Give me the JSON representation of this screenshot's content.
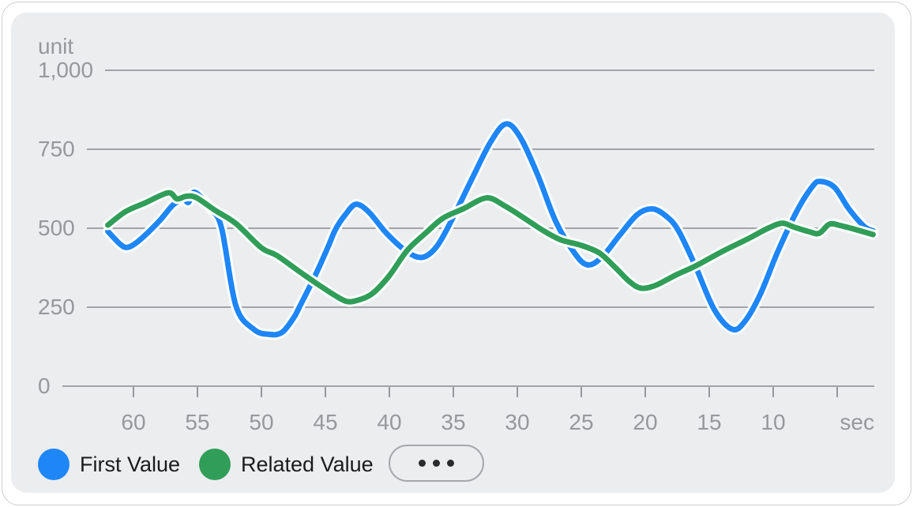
{
  "colors": {
    "card_bg": "#ecedef",
    "panel_border": "#cfcfd4",
    "grid": "#98989d",
    "axis_text": "#97979c",
    "legend_text": "#1b1b1d",
    "pill_border": "#a6a6ab",
    "dot_color": "#2b2b2d",
    "line_halo": "#ffffff",
    "first_value": "#1e86f6",
    "related_value": "#309e58"
  },
  "legend": {
    "more_button_icon": "ellipsis"
  },
  "chart_data": {
    "type": "line",
    "y_unit_label": "unit",
    "x_unit_label": "sec",
    "ylim": [
      0,
      1000
    ],
    "y_ticks": [
      {
        "label": "1,000",
        "value": 1000
      },
      {
        "label": "750",
        "value": 750
      },
      {
        "label": "500",
        "value": 500
      },
      {
        "label": "250",
        "value": 250
      },
      {
        "label": "0",
        "value": 0
      }
    ],
    "x_tick_labels": [
      {
        "label": "60",
        "sec": 60
      },
      {
        "label": "55",
        "sec": 55
      },
      {
        "label": "50",
        "sec": 50
      },
      {
        "label": "45",
        "sec": 45
      },
      {
        "label": "40",
        "sec": 40
      },
      {
        "label": "35",
        "sec": 35
      },
      {
        "label": "30",
        "sec": 30
      },
      {
        "label": "25",
        "sec": 25
      },
      {
        "label": "20",
        "sec": 20
      },
      {
        "label": "15",
        "sec": 15
      },
      {
        "label": "10",
        "sec": 10
      }
    ],
    "x_tick_marks_sec": [
      60,
      55,
      50,
      45,
      40,
      35,
      30,
      25,
      20,
      15,
      10,
      5
    ],
    "x_axis_note": "seconds, descending left-to-right (62 s ago to 2 s ago)",
    "grid": true,
    "legend_position": "bottom",
    "series": [
      {
        "name": "First Value",
        "color": "#1e86f6",
        "points": [
          [
            62,
            490
          ],
          [
            61,
            448
          ],
          [
            60.4,
            440
          ],
          [
            59.5,
            463
          ],
          [
            58,
            522
          ],
          [
            56.9,
            574
          ],
          [
            56.1,
            591
          ],
          [
            55.7,
            582
          ],
          [
            55.2,
            614
          ],
          [
            53.9,
            558
          ],
          [
            53.1,
            498
          ],
          [
            52.0,
            255
          ],
          [
            50.6,
            180
          ],
          [
            49.4,
            164
          ],
          [
            48.4,
            170
          ],
          [
            47.5,
            215
          ],
          [
            47.0,
            253
          ],
          [
            45.8,
            350
          ],
          [
            44.8,
            440
          ],
          [
            44.2,
            497
          ],
          [
            43.4,
            545
          ],
          [
            42.6,
            576
          ],
          [
            41.6,
            551
          ],
          [
            40.2,
            483
          ],
          [
            38.6,
            425
          ],
          [
            37.4,
            408
          ],
          [
            36.3,
            442
          ],
          [
            35.1,
            528
          ],
          [
            33.6,
            652
          ],
          [
            32.1,
            772
          ],
          [
            30.9,
            830
          ],
          [
            29.8,
            790
          ],
          [
            28.4,
            668
          ],
          [
            27.0,
            522
          ],
          [
            25.5,
            420
          ],
          [
            24.5,
            384
          ],
          [
            23.4,
            408
          ],
          [
            22.0,
            478
          ],
          [
            20.6,
            544
          ],
          [
            19.4,
            561
          ],
          [
            18.3,
            536
          ],
          [
            17.4,
            492
          ],
          [
            16.1,
            382
          ],
          [
            14.6,
            242
          ],
          [
            13.2,
            180
          ],
          [
            12.2,
            206
          ],
          [
            11.0,
            292
          ],
          [
            9.6,
            430
          ],
          [
            8.1,
            558
          ],
          [
            6.9,
            634
          ],
          [
            6.3,
            648
          ],
          [
            5.2,
            629
          ],
          [
            4.1,
            562
          ],
          [
            2.9,
            506
          ],
          [
            2.2,
            492
          ]
        ]
      },
      {
        "name": "Related Value",
        "color": "#309e58",
        "points": [
          [
            62,
            510
          ],
          [
            60.6,
            553
          ],
          [
            59.1,
            580
          ],
          [
            57.3,
            612
          ],
          [
            56.6,
            593
          ],
          [
            55.9,
            601
          ],
          [
            55.1,
            597
          ],
          [
            53.6,
            556
          ],
          [
            52,
            515
          ],
          [
            50,
            438
          ],
          [
            48.8,
            414
          ],
          [
            47,
            362
          ],
          [
            45.5,
            320
          ],
          [
            44.2,
            286
          ],
          [
            43.3,
            268
          ],
          [
            42.4,
            273
          ],
          [
            41.3,
            294
          ],
          [
            40,
            350
          ],
          [
            38.6,
            430
          ],
          [
            37.1,
            487
          ],
          [
            35.8,
            532
          ],
          [
            34.2,
            562
          ],
          [
            32.4,
            596
          ],
          [
            31,
            571
          ],
          [
            29.5,
            533
          ],
          [
            28,
            493
          ],
          [
            26.6,
            463
          ],
          [
            25.1,
            447
          ],
          [
            23.6,
            422
          ],
          [
            22.4,
            378
          ],
          [
            21.2,
            330
          ],
          [
            20.3,
            310
          ],
          [
            19.2,
            319
          ],
          [
            17.6,
            352
          ],
          [
            16,
            382
          ],
          [
            14,
            426
          ],
          [
            12,
            466
          ],
          [
            10.4,
            500
          ],
          [
            9.3,
            516
          ],
          [
            8.4,
            504
          ],
          [
            7.2,
            489
          ],
          [
            6.4,
            484
          ],
          [
            5.6,
            513
          ],
          [
            4.7,
            508
          ],
          [
            3.4,
            494
          ],
          [
            2.2,
            480
          ]
        ]
      }
    ]
  }
}
